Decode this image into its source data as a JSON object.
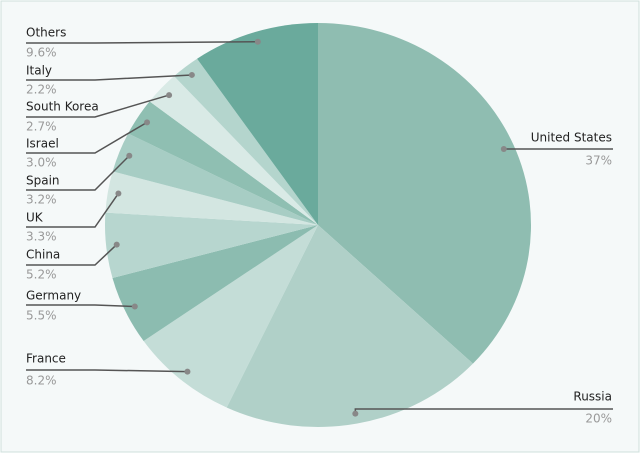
{
  "chart_data": {
    "type": "pie",
    "categories": [
      "United States",
      "Russia",
      "France",
      "Germany",
      "China",
      "UK",
      "Spain",
      "Israel",
      "South Korea",
      "Italy",
      "Others"
    ],
    "values": [
      37,
      20,
      8.2,
      5.5,
      5.2,
      3.3,
      3.2,
      3.0,
      2.7,
      2.2,
      9.6
    ],
    "value_labels": [
      "37%",
      "20%",
      "8.2%",
      "5.5%",
      "5.2%",
      "3.3%",
      "3.2%",
      "3.0%",
      "2.7%",
      "2.2%",
      "9.6%"
    ],
    "colors": [
      "#8fbdb1",
      "#b0d0c8",
      "#c4ddd7",
      "#8cbcb0",
      "#b7d6cf",
      "#d3e6e1",
      "#a7cdc4",
      "#8fbfb2",
      "#d9eae6",
      "#b4d5cd",
      "#6aaa9c"
    ]
  }
}
